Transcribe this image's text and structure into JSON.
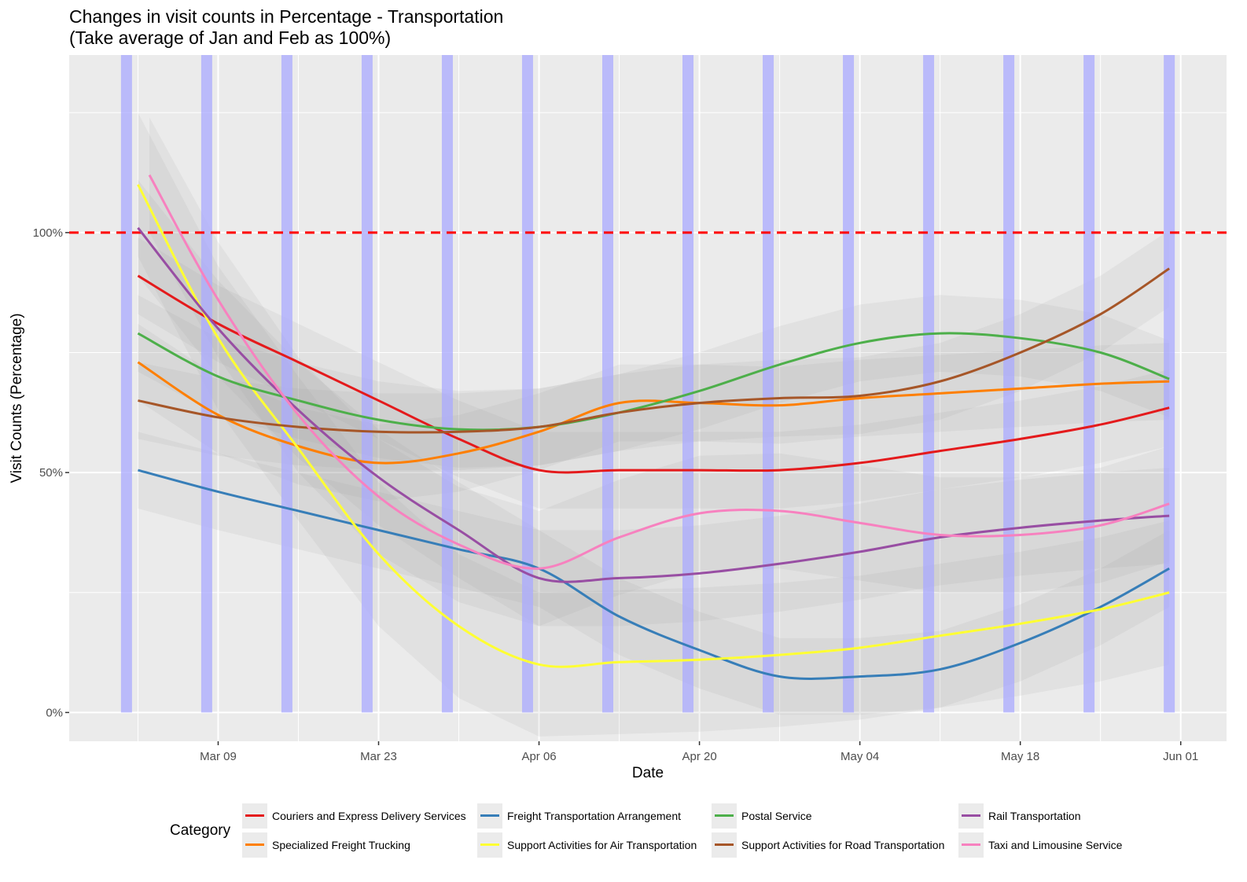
{
  "title": {
    "line1": "Changes in visit counts in Percentage - Transportation",
    "line2": "(Take average of Jan and Feb as 100%)"
  },
  "chart_data": {
    "type": "line",
    "xlabel": "Date",
    "ylabel": "Visit Counts (Percentage)",
    "x_range": [
      "2020-02-25",
      "2020-06-05"
    ],
    "y_range": [
      -6,
      137
    ],
    "x_ticks": [
      {
        "date": "2020-03-09",
        "label": "Mar 09"
      },
      {
        "date": "2020-03-23",
        "label": "Mar 23"
      },
      {
        "date": "2020-04-06",
        "label": "Apr 06"
      },
      {
        "date": "2020-04-20",
        "label": "Apr 20"
      },
      {
        "date": "2020-05-04",
        "label": "May 04"
      },
      {
        "date": "2020-05-18",
        "label": "May 18"
      },
      {
        "date": "2020-06-01",
        "label": "Jun 01"
      }
    ],
    "y_ticks": [
      {
        "value": 0,
        "label": "0%"
      },
      {
        "value": 50,
        "label": "50%"
      },
      {
        "value": 100,
        "label": "100%"
      }
    ],
    "reference_line": {
      "value": 100,
      "color": "#ff0000",
      "style": "dashed"
    },
    "highlight_dates": [
      "2020-03-01",
      "2020-03-08",
      "2020-03-15",
      "2020-03-22",
      "2020-03-29",
      "2020-04-05",
      "2020-04-12",
      "2020-04-19",
      "2020-04-26",
      "2020-05-03",
      "2020-05-10",
      "2020-05-17",
      "2020-05-24",
      "2020-05-31"
    ],
    "highlight_color": "#aaaaff",
    "grid": true,
    "legend_position": "bottom",
    "legend_title": "Category",
    "series": [
      {
        "name": "Couriers and Express Delivery Services",
        "color": "#e41a1c",
        "x": [
          "2020-03-02",
          "2020-03-09",
          "2020-03-16",
          "2020-03-23",
          "2020-03-30",
          "2020-04-06",
          "2020-04-13",
          "2020-04-20",
          "2020-04-27",
          "2020-05-04",
          "2020-05-11",
          "2020-05-18",
          "2020-05-25",
          "2020-05-31"
        ],
        "y": [
          91,
          81,
          73,
          65,
          57,
          50.5,
          50.5,
          50.5,
          50.5,
          52,
          54.5,
          57,
          60,
          63.5
        ],
        "band": 8
      },
      {
        "name": "Specialized Freight Trucking",
        "color": "#ff7f00",
        "x": [
          "2020-03-02",
          "2020-03-09",
          "2020-03-16",
          "2020-03-23",
          "2020-03-30",
          "2020-04-06",
          "2020-04-13",
          "2020-04-20",
          "2020-04-27",
          "2020-05-04",
          "2020-05-11",
          "2020-05-18",
          "2020-05-25",
          "2020-05-31"
        ],
        "y": [
          73,
          62,
          55.5,
          52,
          54,
          58.5,
          64.5,
          64.5,
          64,
          65.5,
          66.5,
          67.5,
          68.5,
          69
        ],
        "band": 8
      },
      {
        "name": "Freight Transportation Arrangement",
        "color": "#377eb8",
        "x": [
          "2020-03-02",
          "2020-03-09",
          "2020-03-16",
          "2020-03-23",
          "2020-03-30",
          "2020-04-06",
          "2020-04-13",
          "2020-04-20",
          "2020-04-27",
          "2020-05-04",
          "2020-05-11",
          "2020-05-18",
          "2020-05-25",
          "2020-05-31"
        ],
        "y": [
          50.5,
          46,
          42,
          38,
          34,
          30,
          20,
          13,
          7.5,
          7.5,
          9,
          14.5,
          22,
          30
        ],
        "band": 8
      },
      {
        "name": "Support Activities for Air Transportation",
        "color": "#ffff33",
        "x": [
          "2020-03-02",
          "2020-03-09",
          "2020-03-16",
          "2020-03-23",
          "2020-03-30",
          "2020-04-06",
          "2020-04-13",
          "2020-04-20",
          "2020-04-27",
          "2020-05-04",
          "2020-05-11",
          "2020-05-18",
          "2020-05-25",
          "2020-05-31"
        ],
        "y": [
          110,
          78,
          55,
          33,
          18,
          10,
          10.5,
          11,
          12,
          13.5,
          16,
          18.5,
          21.5,
          25
        ],
        "band": 15
      },
      {
        "name": "Postal Service",
        "color": "#4daf4a",
        "x": [
          "2020-03-02",
          "2020-03-09",
          "2020-03-16",
          "2020-03-23",
          "2020-03-30",
          "2020-04-06",
          "2020-04-13",
          "2020-04-20",
          "2020-04-27",
          "2020-05-04",
          "2020-05-11",
          "2020-05-18",
          "2020-05-25",
          "2020-05-31"
        ],
        "y": [
          79,
          70,
          65,
          61,
          59,
          59.5,
          62.5,
          67,
          72.5,
          77,
          79,
          78,
          75,
          69.5
        ],
        "band": 8
      },
      {
        "name": "Support Activities for Road Transportation",
        "color": "#a65628",
        "x": [
          "2020-03-02",
          "2020-03-09",
          "2020-03-16",
          "2020-03-23",
          "2020-03-30",
          "2020-04-06",
          "2020-04-13",
          "2020-04-20",
          "2020-04-27",
          "2020-05-04",
          "2020-05-11",
          "2020-05-18",
          "2020-05-25",
          "2020-05-31"
        ],
        "y": [
          65,
          61.5,
          59.5,
          58.5,
          58.5,
          59.5,
          62.5,
          64.5,
          65.5,
          66,
          69,
          75,
          83,
          92.5
        ],
        "band": 8
      },
      {
        "name": "Rail Transportation",
        "color": "#984ea3",
        "x": [
          "2020-03-02",
          "2020-03-09",
          "2020-03-16",
          "2020-03-23",
          "2020-03-30",
          "2020-04-06",
          "2020-04-13",
          "2020-04-20",
          "2020-04-27",
          "2020-05-04",
          "2020-05-11",
          "2020-05-18",
          "2020-05-25",
          "2020-05-31"
        ],
        "y": [
          101,
          80,
          63,
          49,
          38,
          28,
          28,
          29,
          31,
          33.5,
          36.5,
          38.5,
          40,
          41
        ],
        "band": 10
      },
      {
        "name": "Taxi and Limousine Service",
        "color": "#f781bf",
        "x": [
          "2020-03-03",
          "2020-03-09",
          "2020-03-16",
          "2020-03-23",
          "2020-03-30",
          "2020-04-06",
          "2020-04-13",
          "2020-04-20",
          "2020-04-27",
          "2020-05-04",
          "2020-05-11",
          "2020-05-18",
          "2020-05-25",
          "2020-05-31"
        ],
        "y": [
          112,
          86,
          62,
          45,
          35,
          30,
          36.5,
          41.5,
          42,
          39.5,
          37,
          37,
          39,
          43.5
        ],
        "band": 12
      }
    ]
  }
}
